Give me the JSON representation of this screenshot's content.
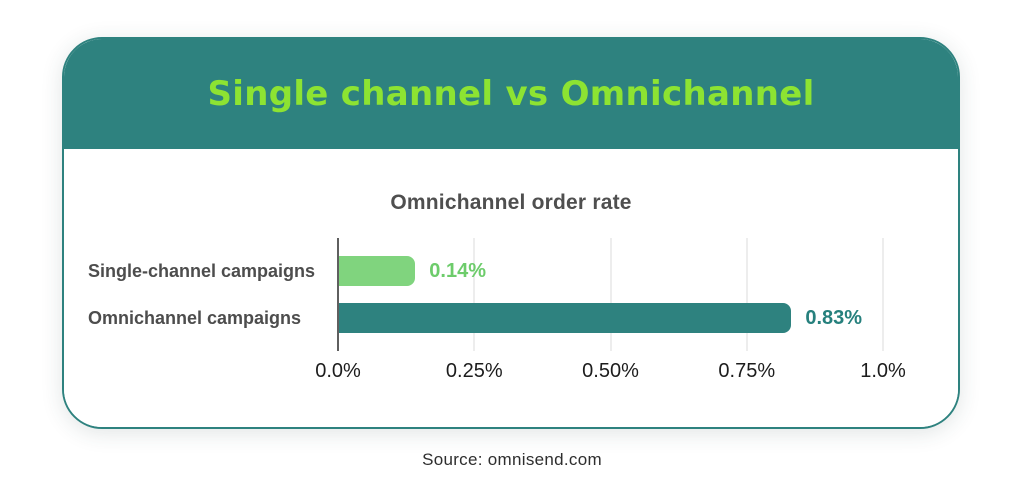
{
  "header": {
    "title": "Single channel vs Omnichannel"
  },
  "source": {
    "text": "Source: omnisend.com"
  },
  "colors": {
    "teal": "#2e827f",
    "title-green": "#8de332",
    "card-bg": "#ffffff",
    "grid": "#ededed",
    "axis": "#5f5f5f",
    "chart-title": "#4f4f4f",
    "category-label": "#4d4d4d",
    "tick-label": "#1c1c1c",
    "source-text": "#2e2e2e"
  },
  "chart_data": {
    "type": "bar",
    "orientation": "horizontal",
    "title": "Omnichannel order rate",
    "categories": [
      "Single-channel campaigns",
      "Omnichannel campaigns"
    ],
    "values": [
      0.14,
      0.83
    ],
    "value_labels": [
      "0.14%",
      "0.83%"
    ],
    "bar_colors": [
      "#80d47e",
      "#2e827f"
    ],
    "value_label_colors": [
      "#6dcc6b",
      "#26807d"
    ],
    "xlabel": "",
    "ylabel": "",
    "xlim": [
      0,
      1.0
    ],
    "xticks": [
      "0.0%",
      "0.25%",
      "0.50%",
      "0.75%",
      "1.0%"
    ],
    "xtick_values": [
      0,
      0.25,
      0.5,
      0.75,
      1.0
    ],
    "legend": "none",
    "grid": "vertical-lines-at-ticks"
  }
}
